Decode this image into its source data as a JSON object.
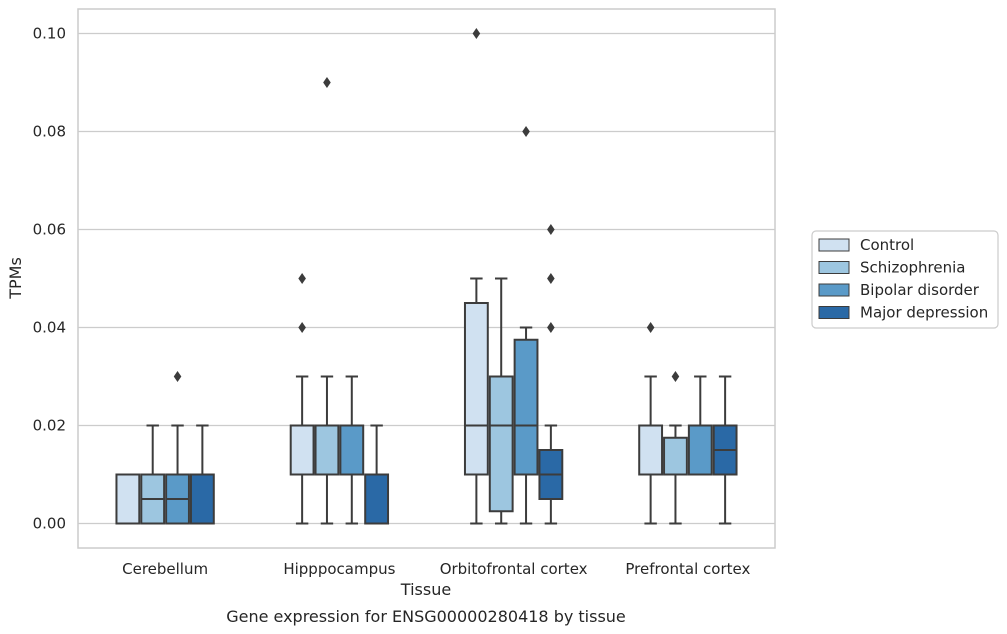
{
  "chart_data": {
    "type": "box",
    "xlabel": "Tissue",
    "ylabel": "TPMs",
    "caption": "Gene expression for ENSG00000280418 by tissue",
    "ylim": [
      -0.005,
      0.105
    ],
    "yticks": [
      0.0,
      0.02,
      0.04,
      0.06,
      0.08,
      0.1
    ],
    "ytick_labels": [
      "0.00",
      "0.02",
      "0.04",
      "0.06",
      "0.08",
      "0.10"
    ],
    "grid": true,
    "legend_position": "right",
    "categories": [
      "Cerebellum",
      "Hipppocampus",
      "Orbitofrontal cortex",
      "Prefrontal cortex"
    ],
    "series": [
      {
        "name": "Control",
        "color": "#d0e1f1",
        "boxes": [
          {
            "q1": 0.0,
            "median": 0.0,
            "q3": 0.01,
            "whisker_low": 0.0,
            "whisker_high": 0.01,
            "outliers": []
          },
          {
            "q1": 0.01,
            "median": 0.02,
            "q3": 0.02,
            "whisker_low": 0.0,
            "whisker_high": 0.03,
            "outliers": [
              0.04,
              0.05
            ]
          },
          {
            "q1": 0.01,
            "median": 0.02,
            "q3": 0.045,
            "whisker_low": 0.0,
            "whisker_high": 0.05,
            "outliers": [
              0.1
            ]
          },
          {
            "q1": 0.01,
            "median": 0.01,
            "q3": 0.02,
            "whisker_low": 0.0,
            "whisker_high": 0.03,
            "outliers": [
              0.04
            ]
          }
        ]
      },
      {
        "name": "Schizophrenia",
        "color": "#9dc6e0",
        "boxes": [
          {
            "q1": 0.0,
            "median": 0.005,
            "q3": 0.01,
            "whisker_low": 0.0,
            "whisker_high": 0.02,
            "outliers": []
          },
          {
            "q1": 0.01,
            "median": 0.02,
            "q3": 0.02,
            "whisker_low": 0.0,
            "whisker_high": 0.03,
            "outliers": [
              0.09
            ]
          },
          {
            "q1": 0.0025,
            "median": 0.02,
            "q3": 0.03,
            "whisker_low": 0.0,
            "whisker_high": 0.05,
            "outliers": []
          },
          {
            "q1": 0.01,
            "median": 0.01,
            "q3": 0.0175,
            "whisker_low": 0.0,
            "whisker_high": 0.02,
            "outliers": [
              0.03
            ]
          }
        ]
      },
      {
        "name": "Bipolar disorder",
        "color": "#5a9ac8",
        "boxes": [
          {
            "q1": 0.0,
            "median": 0.005,
            "q3": 0.01,
            "whisker_low": 0.0,
            "whisker_high": 0.02,
            "outliers": [
              0.03
            ]
          },
          {
            "q1": 0.01,
            "median": 0.02,
            "q3": 0.02,
            "whisker_low": 0.0,
            "whisker_high": 0.03,
            "outliers": []
          },
          {
            "q1": 0.01,
            "median": 0.02,
            "q3": 0.0375,
            "whisker_low": 0.0,
            "whisker_high": 0.04,
            "outliers": [
              0.08
            ]
          },
          {
            "q1": 0.01,
            "median": 0.01,
            "q3": 0.02,
            "whisker_low": 0.01,
            "whisker_high": 0.03,
            "outliers": []
          }
        ]
      },
      {
        "name": "Major depression",
        "color": "#2a69a6",
        "boxes": [
          {
            "q1": 0.0,
            "median": 0.01,
            "q3": 0.01,
            "whisker_low": 0.0,
            "whisker_high": 0.02,
            "outliers": []
          },
          {
            "q1": 0.0,
            "median": 0.01,
            "q3": 0.01,
            "whisker_low": 0.0,
            "whisker_high": 0.02,
            "outliers": []
          },
          {
            "q1": 0.005,
            "median": 0.01,
            "q3": 0.015,
            "whisker_low": 0.0,
            "whisker_high": 0.02,
            "outliers": [
              0.04,
              0.05,
              0.06
            ]
          },
          {
            "q1": 0.01,
            "median": 0.015,
            "q3": 0.02,
            "whisker_low": 0.0,
            "whisker_high": 0.03,
            "outliers": []
          }
        ]
      }
    ]
  }
}
